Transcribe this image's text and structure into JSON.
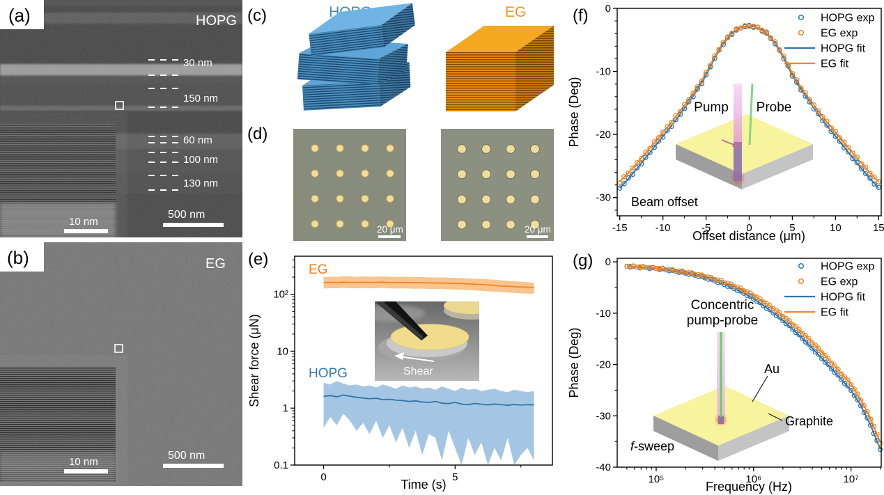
{
  "figure": {
    "panel_a": {
      "label": "(a)",
      "material": "HOPG",
      "scalebar": "500 nm",
      "inset_scalebar": "10 nm",
      "thickness_labels": [
        "30 nm",
        "150 nm",
        "60 nm",
        "100 nm",
        "130 nm"
      ]
    },
    "panel_b": {
      "label": "(b)",
      "material": "EG",
      "scalebar": "500 nm",
      "inset_scalebar": "10 nm"
    },
    "panel_c": {
      "label": "(c)",
      "hopg_title": "HOPG",
      "eg_title": "EG"
    },
    "panel_d": {
      "label": "(d)",
      "scalebar_left": "20 μm",
      "scalebar_right": "20 μm"
    },
    "panel_e": {
      "label": "(e)",
      "inset_shear_label": "Shear"
    },
    "panel_f": {
      "label": "(f)",
      "pump_label": "Pump",
      "probe_label": "Probe"
    },
    "panel_g": {
      "label": "(g)",
      "corner_label_italic": "f",
      "corner_label_rest": "-sweep",
      "inset_title_line1": "Concentric",
      "inset_title_line2": "pump-probe",
      "au_label": "Au",
      "graphite_label": "Graphite"
    }
  },
  "colors": {
    "hopg": "#2e75b0",
    "eg": "#f28522",
    "hopg_band": "#a5c6e2",
    "eg_band": "#f9c48d",
    "hopg_label": "#3279b5",
    "eg_label": "#ee7d18",
    "hopg_title": "#4189c4",
    "eg_title": "#f79320",
    "axis": "#000000"
  },
  "chart_data": [
    {
      "panel": "e",
      "type": "line",
      "y_scale": "log",
      "xlabel": "Time (s)",
      "ylabel": "Shear force (μN)",
      "xlim": [
        -1.1,
        8.7
      ],
      "ylim": [
        0.1,
        466
      ],
      "x_ticks": [
        {
          "v": 0,
          "label": "0"
        },
        {
          "v": 5,
          "label": "5"
        }
      ],
      "x_minor_ticks": [
        2.5,
        7.5
      ],
      "y_ticks": [
        {
          "v": 0.1,
          "label": "0.1"
        },
        {
          "v": 1,
          "label": "1"
        },
        {
          "v": 10,
          "label": "10"
        },
        {
          "v": 100,
          "label": "10²"
        }
      ],
      "x": [
        0,
        0.25,
        0.5,
        0.75,
        1,
        1.25,
        1.5,
        1.75,
        2,
        2.25,
        2.5,
        2.75,
        3,
        3.25,
        3.5,
        3.75,
        4,
        4.25,
        4.5,
        4.75,
        5,
        5.25,
        5.5,
        5.75,
        6,
        6.25,
        6.5,
        6.75,
        7,
        7.25,
        7.5,
        7.75,
        8
      ],
      "series": [
        {
          "name": "EG",
          "color_key": "eg",
          "band_color_key": "eg_band",
          "mean": [
            160,
            162,
            161,
            163,
            162,
            161,
            163,
            161,
            162,
            163,
            161,
            160,
            161,
            160,
            159,
            160,
            158,
            157,
            158,
            156,
            155,
            154,
            152,
            150,
            148,
            146,
            143,
            140,
            138,
            136,
            134,
            133,
            132
          ],
          "upper": [
            200,
            204,
            202,
            208,
            205,
            202,
            206,
            203,
            204,
            206,
            203,
            201,
            203,
            201,
            200,
            200,
            198,
            196,
            198,
            196,
            194,
            193,
            190,
            188,
            186,
            183,
            180,
            176,
            172,
            169,
            166,
            163,
            160
          ],
          "lower": [
            126,
            128,
            127,
            130,
            128,
            127,
            129,
            127,
            128,
            129,
            127,
            126,
            127,
            126,
            125,
            126,
            124,
            123,
            124,
            122,
            121,
            120,
            118,
            117,
            115,
            113,
            111,
            109,
            107,
            106,
            104,
            103,
            102
          ]
        },
        {
          "name": "HOPG",
          "color_key": "hopg",
          "band_color_key": "hopg_band",
          "mean": [
            1.6,
            1.66,
            1.58,
            1.7,
            1.62,
            1.55,
            1.5,
            1.46,
            1.49,
            1.41,
            1.43,
            1.38,
            1.36,
            1.31,
            1.34,
            1.28,
            1.26,
            1.31,
            1.22,
            1.2,
            1.26,
            1.18,
            1.15,
            1.21,
            1.17,
            1.14,
            1.18,
            1.15,
            1.12,
            1.16,
            1.13,
            1.15,
            1.14
          ],
          "upper": [
            2.8,
            2.6,
            3.0,
            2.7,
            2.5,
            2.6,
            2.4,
            2.5,
            2.3,
            2.6,
            2.4,
            2.2,
            2.5,
            2.3,
            2.4,
            2.2,
            2.3,
            2.1,
            2.4,
            2.2,
            2.0,
            2.3,
            2.1,
            2.2,
            2.0,
            2.1,
            2.2,
            2.0,
            1.9,
            2.1,
            2.0,
            1.9,
            2.0
          ],
          "lower": [
            0.45,
            0.7,
            0.5,
            0.8,
            0.6,
            0.4,
            0.55,
            0.35,
            0.6,
            0.3,
            0.5,
            0.25,
            0.45,
            0.2,
            0.4,
            0.15,
            0.35,
            0.3,
            0.12,
            0.4,
            0.2,
            0.1,
            0.3,
            0.15,
            0.25,
            0.1,
            0.2,
            0.12,
            0.3,
            0.1,
            0.15,
            0.2,
            0.12
          ]
        }
      ]
    },
    {
      "panel": "f",
      "type": "scatter+line",
      "xlabel": "Offset distance (μm)",
      "ylabel": "Phase (Deg)",
      "corner_label": "Beam offset",
      "xlim": [
        -15.3,
        15.3
      ],
      "ylim": [
        -32.9,
        0
      ],
      "x_ticks": [
        {
          "v": -15,
          "label": "-15"
        },
        {
          "v": -10,
          "label": "-10"
        },
        {
          "v": -5,
          "label": "-5"
        },
        {
          "v": 0,
          "label": "0"
        },
        {
          "v": 5,
          "label": "5"
        },
        {
          "v": 10,
          "label": "10"
        },
        {
          "v": 15,
          "label": "15"
        }
      ],
      "y_ticks": [
        {
          "v": 0,
          "label": "0"
        },
        {
          "v": -10,
          "label": "-10"
        },
        {
          "v": -20,
          "label": "-20"
        },
        {
          "v": -30,
          "label": "-30"
        }
      ],
      "legend": [
        {
          "label": "HOPG exp",
          "type": "marker",
          "color_key": "hopg"
        },
        {
          "label": "EG exp",
          "type": "marker",
          "color_key": "eg"
        },
        {
          "label": "HOPG fit",
          "type": "line",
          "color_key": "hopg"
        },
        {
          "label": "EG fit",
          "type": "line",
          "color_key": "eg"
        }
      ],
      "x": [
        -15,
        -14.5,
        -14,
        -13.5,
        -13,
        -12.5,
        -12,
        -11.5,
        -11,
        -10.5,
        -10,
        -9.5,
        -9,
        -8.5,
        -8,
        -7.5,
        -7,
        -6.5,
        -6,
        -5.5,
        -5,
        -4.5,
        -4,
        -3.5,
        -3,
        -2.5,
        -2,
        -1.5,
        -1,
        -0.5,
        0,
        0.5,
        1,
        1.5,
        2,
        2.5,
        3,
        3.5,
        4,
        4.5,
        5,
        5.5,
        6,
        6.5,
        7,
        7.5,
        8,
        8.5,
        9,
        9.5,
        10,
        10.5,
        11,
        11.5,
        12,
        12.5,
        13,
        13.5,
        14,
        14.5,
        15
      ],
      "series": [
        {
          "name": "HOPG",
          "color_key": "hopg",
          "values": [
            -28.5,
            -27.75,
            -27,
            -26.2,
            -25.4,
            -24.55,
            -23.7,
            -22.85,
            -22,
            -21.15,
            -20.3,
            -19.45,
            -18.6,
            -17.7,
            -16.8,
            -15.85,
            -14.9,
            -13.9,
            -12.9,
            -11.8,
            -10.6,
            -9.25,
            -7.9,
            -6.7,
            -5.6,
            -4.75,
            -4,
            -3.5,
            -3.1,
            -2.88,
            -2.8,
            -2.88,
            -3.1,
            -3.5,
            -4,
            -4.75,
            -5.6,
            -6.7,
            -7.9,
            -9.25,
            -10.6,
            -11.8,
            -12.9,
            -13.9,
            -14.9,
            -15.85,
            -16.8,
            -17.7,
            -18.6,
            -19.45,
            -20.3,
            -21.15,
            -22,
            -22.85,
            -23.7,
            -24.55,
            -25.4,
            -26.2,
            -27,
            -27.75,
            -28.5
          ]
        },
        {
          "name": "EG",
          "color_key": "eg",
          "values": [
            -27.5,
            -26.78,
            -26.07,
            -25.3,
            -24.53,
            -23.72,
            -22.9,
            -22.08,
            -21.27,
            -20.45,
            -19.63,
            -18.82,
            -18,
            -17.13,
            -16.27,
            -15.35,
            -14.43,
            -13.47,
            -12.5,
            -11.43,
            -10.27,
            -8.95,
            -7.63,
            -6.47,
            -5.4,
            -4.58,
            -3.87,
            -3.4,
            -3.03,
            -2.85,
            -2.78,
            -2.85,
            -3.03,
            -3.4,
            -3.87,
            -4.58,
            -5.4,
            -6.47,
            -7.63,
            -8.95,
            -10.27,
            -11.43,
            -12.5,
            -13.47,
            -14.43,
            -15.35,
            -16.27,
            -17.13,
            -18,
            -18.82,
            -19.63,
            -20.45,
            -21.27,
            -22.08,
            -22.9,
            -23.72,
            -24.53,
            -25.3,
            -26.07,
            -26.78,
            -27.5
          ]
        }
      ]
    },
    {
      "panel": "g",
      "type": "scatter+line",
      "x_scale": "log",
      "xlabel": "Frequency (Hz)",
      "ylabel": "Phase (Deg)",
      "xlim_log10": [
        4.6,
        7.31
      ],
      "ylim": [
        -40,
        0.7
      ],
      "x_ticks": [
        {
          "v": 5,
          "label": "10⁵"
        },
        {
          "v": 6,
          "label": "10⁶"
        },
        {
          "v": 7,
          "label": "10⁷"
        }
      ],
      "y_ticks": [
        {
          "v": 0,
          "label": "0"
        },
        {
          "v": -10,
          "label": "-10"
        },
        {
          "v": -20,
          "label": "-20"
        },
        {
          "v": -30,
          "label": "-30"
        },
        {
          "v": -40,
          "label": "-40"
        }
      ],
      "legend": [
        {
          "label": "HOPG exp",
          "type": "marker",
          "color_key": "hopg"
        },
        {
          "label": "EG exp",
          "type": "marker",
          "color_key": "eg"
        },
        {
          "label": "HOPG fit",
          "type": "line",
          "color_key": "hopg"
        },
        {
          "label": "EG fit",
          "type": "line",
          "color_key": "eg"
        }
      ],
      "x_log10": [
        4.7,
        4.8,
        4.9,
        5.0,
        5.1,
        5.2,
        5.3,
        5.4,
        5.5,
        5.6,
        5.7,
        5.8,
        5.9,
        6.0,
        6.1,
        6.2,
        6.3,
        6.4,
        6.5,
        6.6,
        6.7,
        6.8,
        6.9,
        7.0,
        7.1,
        7.2,
        7.3
      ],
      "series": [
        {
          "name": "HOPG",
          "color_key": "hopg",
          "values": [
            -0.85,
            -1.0,
            -1.15,
            -1.3,
            -1.55,
            -1.85,
            -2.2,
            -2.6,
            -3.1,
            -3.7,
            -4.4,
            -5.2,
            -6.1,
            -7.2,
            -8.5,
            -9.9,
            -11.4,
            -13.1,
            -14.9,
            -16.8,
            -18.8,
            -20.8,
            -22.9,
            -25.0,
            -28.0,
            -31.8,
            -36.5
          ]
        },
        {
          "name": "EG",
          "color_key": "eg",
          "values": [
            -0.8,
            -0.92,
            -1.05,
            -1.2,
            -1.4,
            -1.68,
            -2.0,
            -2.35,
            -2.8,
            -3.3,
            -3.95,
            -4.65,
            -5.5,
            -6.5,
            -7.7,
            -9.0,
            -10.5,
            -12.1,
            -13.8,
            -15.6,
            -17.6,
            -19.6,
            -21.7,
            -23.8,
            -26.8,
            -30.5,
            -35.2
          ]
        }
      ]
    }
  ]
}
